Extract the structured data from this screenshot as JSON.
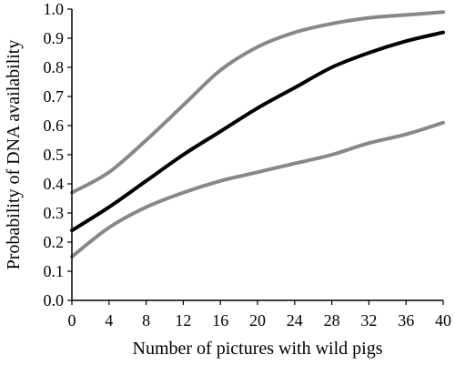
{
  "chart_data": {
    "type": "line",
    "xlabel": "Number of pictures with wild pigs",
    "ylabel": "Probability of DNA availability",
    "xlim": [
      0,
      40
    ],
    "ylim": [
      0,
      1
    ],
    "x_ticks": [
      "0",
      "4",
      "8",
      "12",
      "16",
      "20",
      "24",
      "28",
      "32",
      "36",
      "40"
    ],
    "y_ticks": [
      "0.0",
      "0.1",
      "0.2",
      "0.3",
      "0.4",
      "0.5",
      "0.6",
      "0.7",
      "0.8",
      "0.9",
      "1.0"
    ],
    "grid": false,
    "legend": "none",
    "x": [
      0,
      4,
      8,
      12,
      16,
      20,
      24,
      28,
      32,
      36,
      40
    ],
    "series": [
      {
        "color": "#888888",
        "values": [
          0.37,
          0.44,
          0.55,
          0.67,
          0.79,
          0.87,
          0.92,
          0.95,
          0.97,
          0.98,
          0.99
        ]
      },
      {
        "color": "#000000",
        "values": [
          0.24,
          0.32,
          0.41,
          0.5,
          0.58,
          0.66,
          0.73,
          0.8,
          0.85,
          0.89,
          0.92
        ]
      },
      {
        "color": "#888888",
        "values": [
          0.15,
          0.25,
          0.32,
          0.37,
          0.41,
          0.44,
          0.47,
          0.5,
          0.54,
          0.57,
          0.61
        ]
      }
    ]
  }
}
